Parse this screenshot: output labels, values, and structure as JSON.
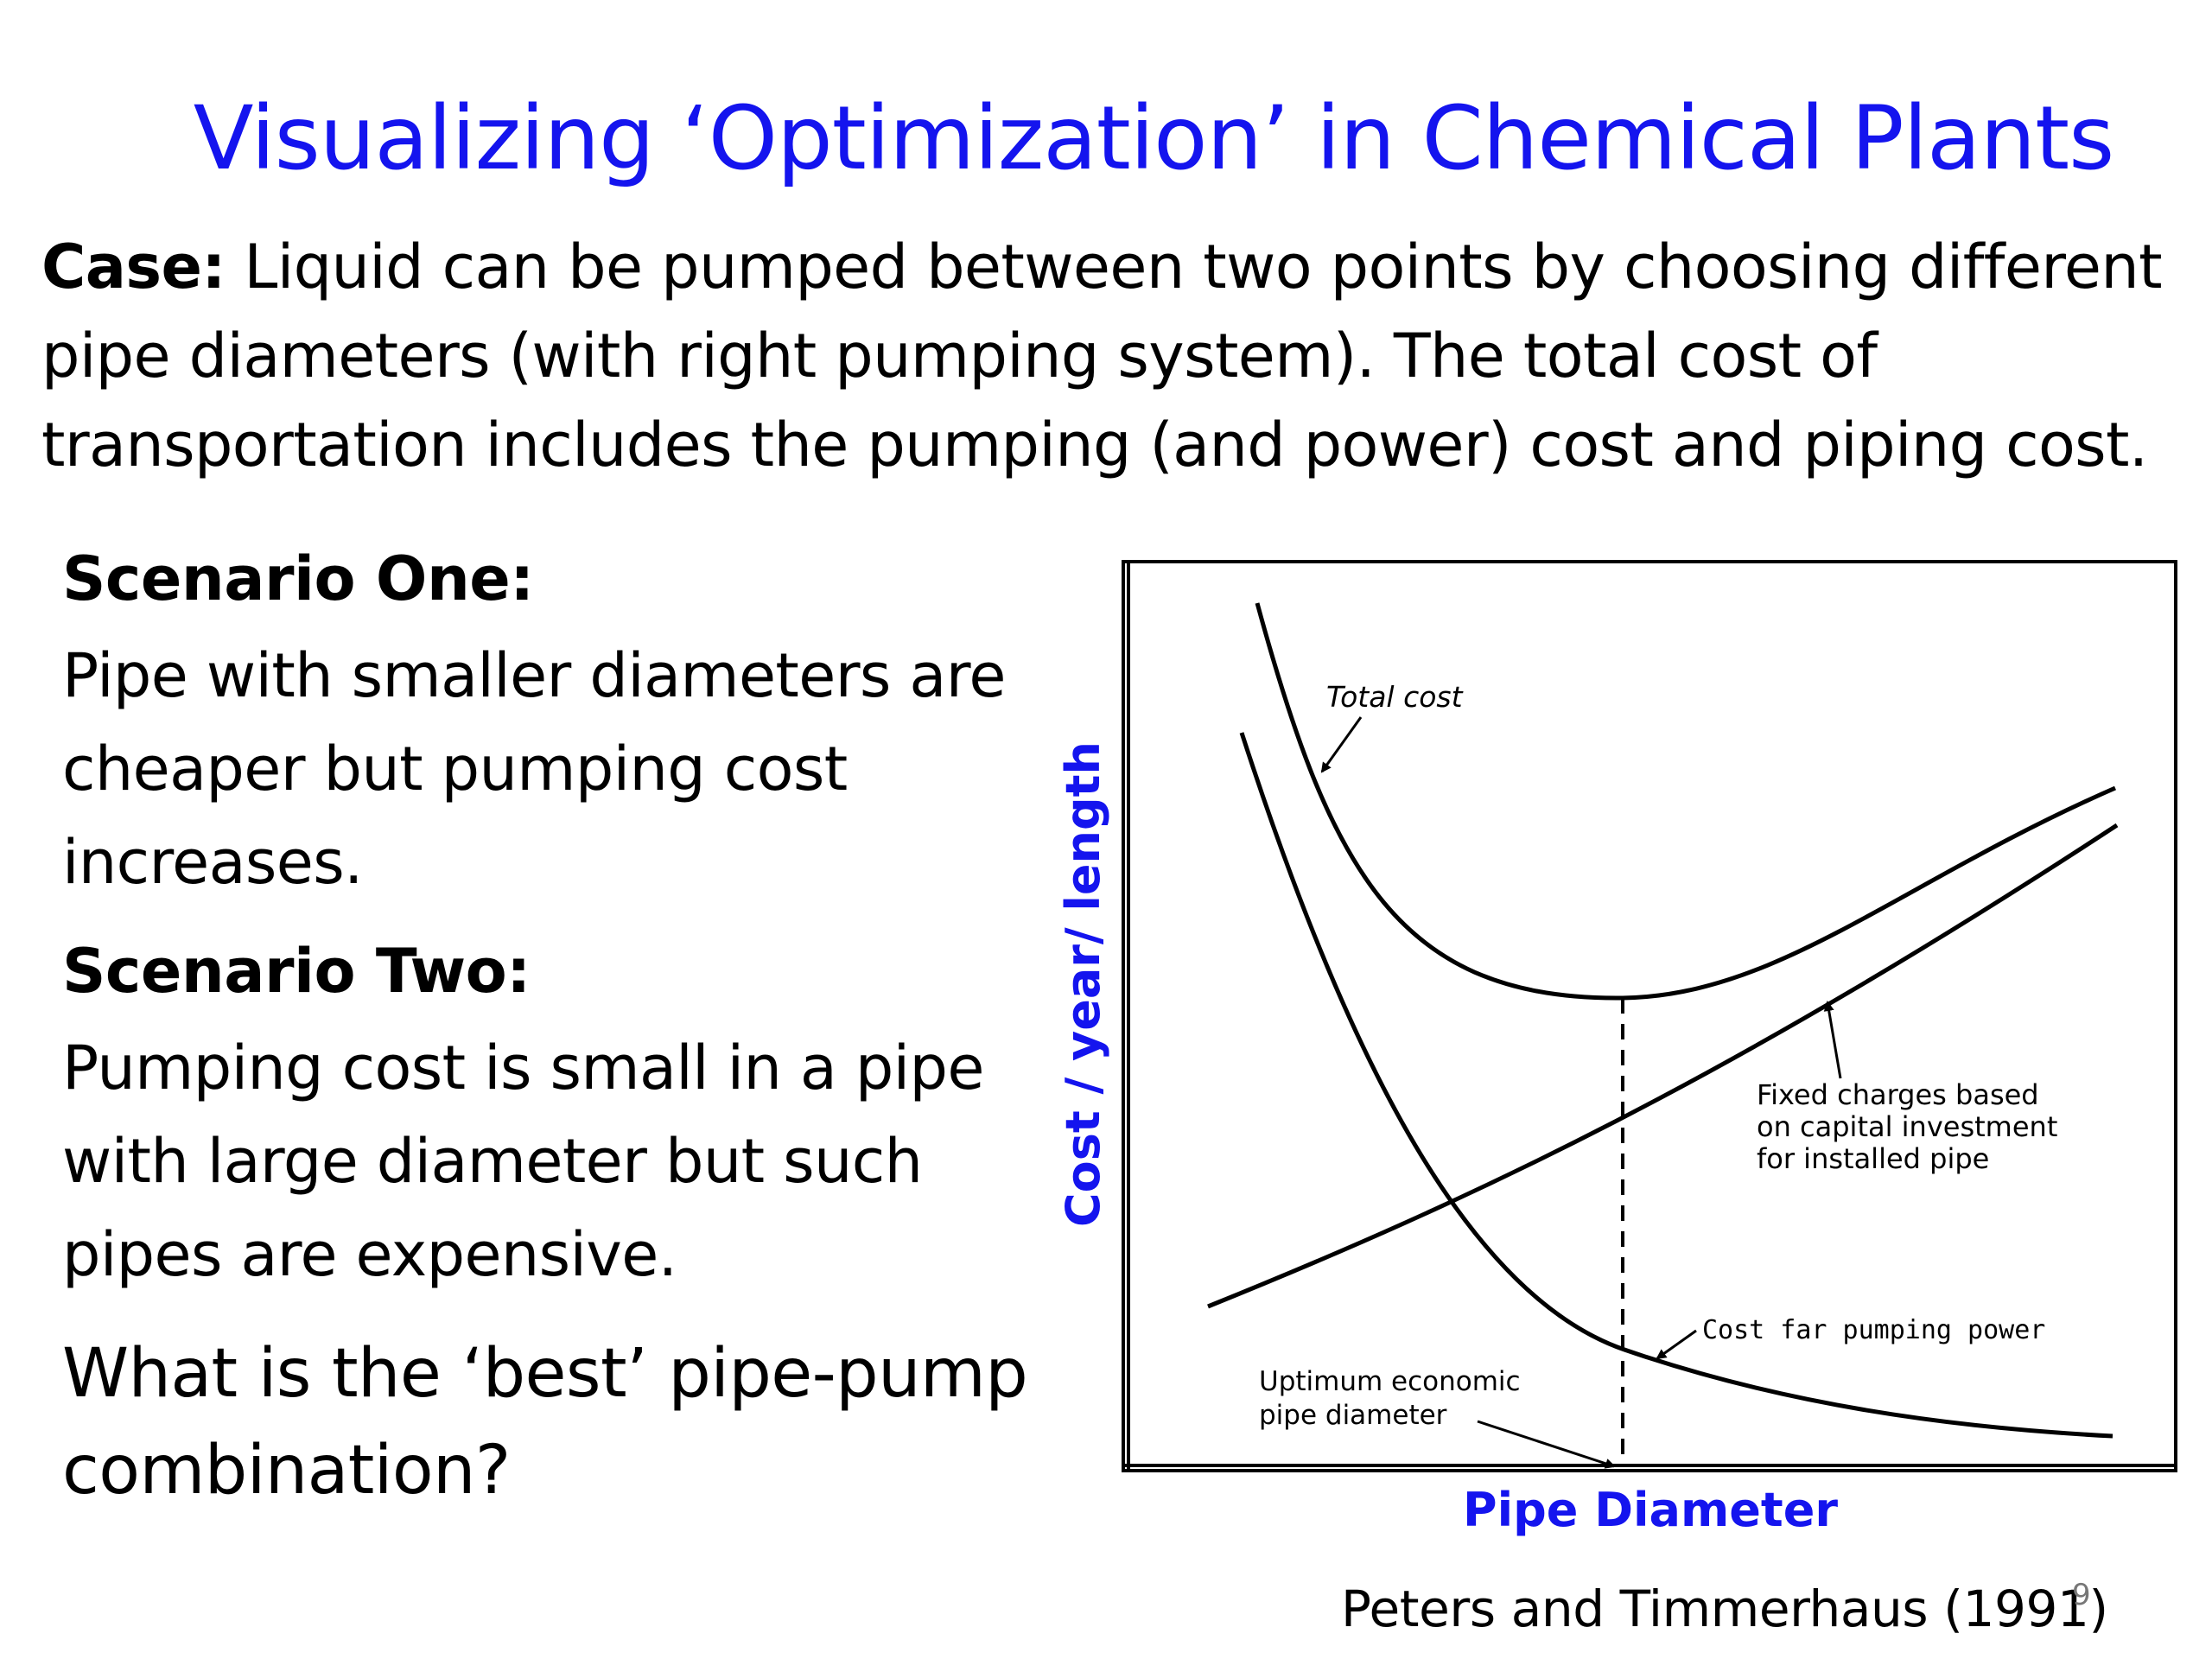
{
  "slide": {
    "title": "Visualizing ‘Optimization’ in Chemical Plants",
    "case_label": "Case:",
    "case_text": " Liquid can be pumped between two points by choosing different pipe diameters (with right pumping system). The total cost of transportation includes the pumping (and power) cost and piping cost.",
    "scenario_one_heading": "Scenario One:",
    "scenario_one_text": "Pipe with smaller diameters are cheaper but pumping cost increases.",
    "scenario_two_heading": "Scenario Two:",
    "scenario_two_text": "Pumping cost is small in a pipe with large diameter but such pipes are expensive.",
    "question": "What is the ‘best’ pipe-pump combination?",
    "citation": "Peters and Timmerhaus (1991)",
    "page_number": "9"
  },
  "diagram": {
    "y_axis_label": "Cost / year/ length",
    "x_axis_label": "Pipe Diameter",
    "total_cost_label": "Total cost",
    "fixed_charges_label_1": "Fixed charges based",
    "fixed_charges_label_2": "on capital investment",
    "fixed_charges_label_3": "for installed pipe",
    "pumping_cost_label": "Cost far pumping power",
    "optimum_label_1": "Uptimum economic",
    "optimum_label_2": "pipe diameter",
    "colors": {
      "axis_label": "#1414ee",
      "curve": "#000000"
    }
  }
}
